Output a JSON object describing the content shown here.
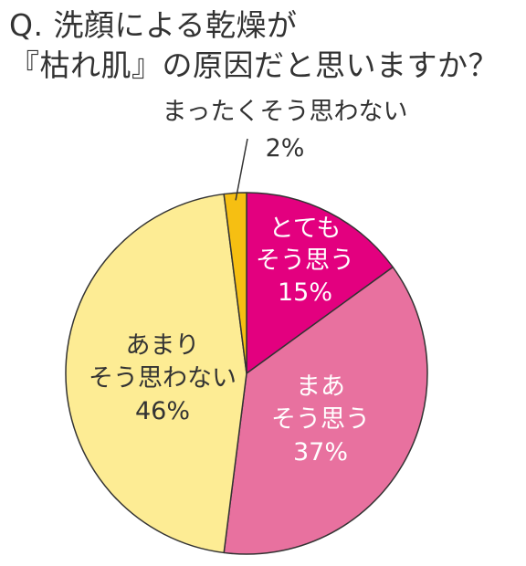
{
  "title": {
    "line1": "Q. 洗顔による乾燥が",
    "line2": "『枯れ肌』の原因だと思いますか？"
  },
  "chart_data": {
    "type": "pie",
    "title": "Q. 洗顔による乾燥が『枯れ肌』の原因だと思いますか？",
    "slices": [
      {
        "label": [
          "とても",
          "そう思う"
        ],
        "value": 15,
        "value_label": "15%",
        "color": "#e3007f",
        "text_color": "#ffffff"
      },
      {
        "label": [
          "まあ",
          "そう思う"
        ],
        "value": 37,
        "value_label": "37%",
        "color": "#e8719f",
        "text_color": "#ffffff"
      },
      {
        "label": [
          "あまり",
          "そう思わない"
        ],
        "value": 46,
        "value_label": "46%",
        "color": "#fdec94",
        "text_color": "#333333"
      },
      {
        "label": [
          "まったくそう思わない"
        ],
        "value": 2,
        "value_label": "2%",
        "color": "#f6bf12",
        "text_color": "#333333"
      }
    ],
    "start_angle_deg": 0,
    "direction": "clockwise",
    "border_color": "#333333"
  }
}
